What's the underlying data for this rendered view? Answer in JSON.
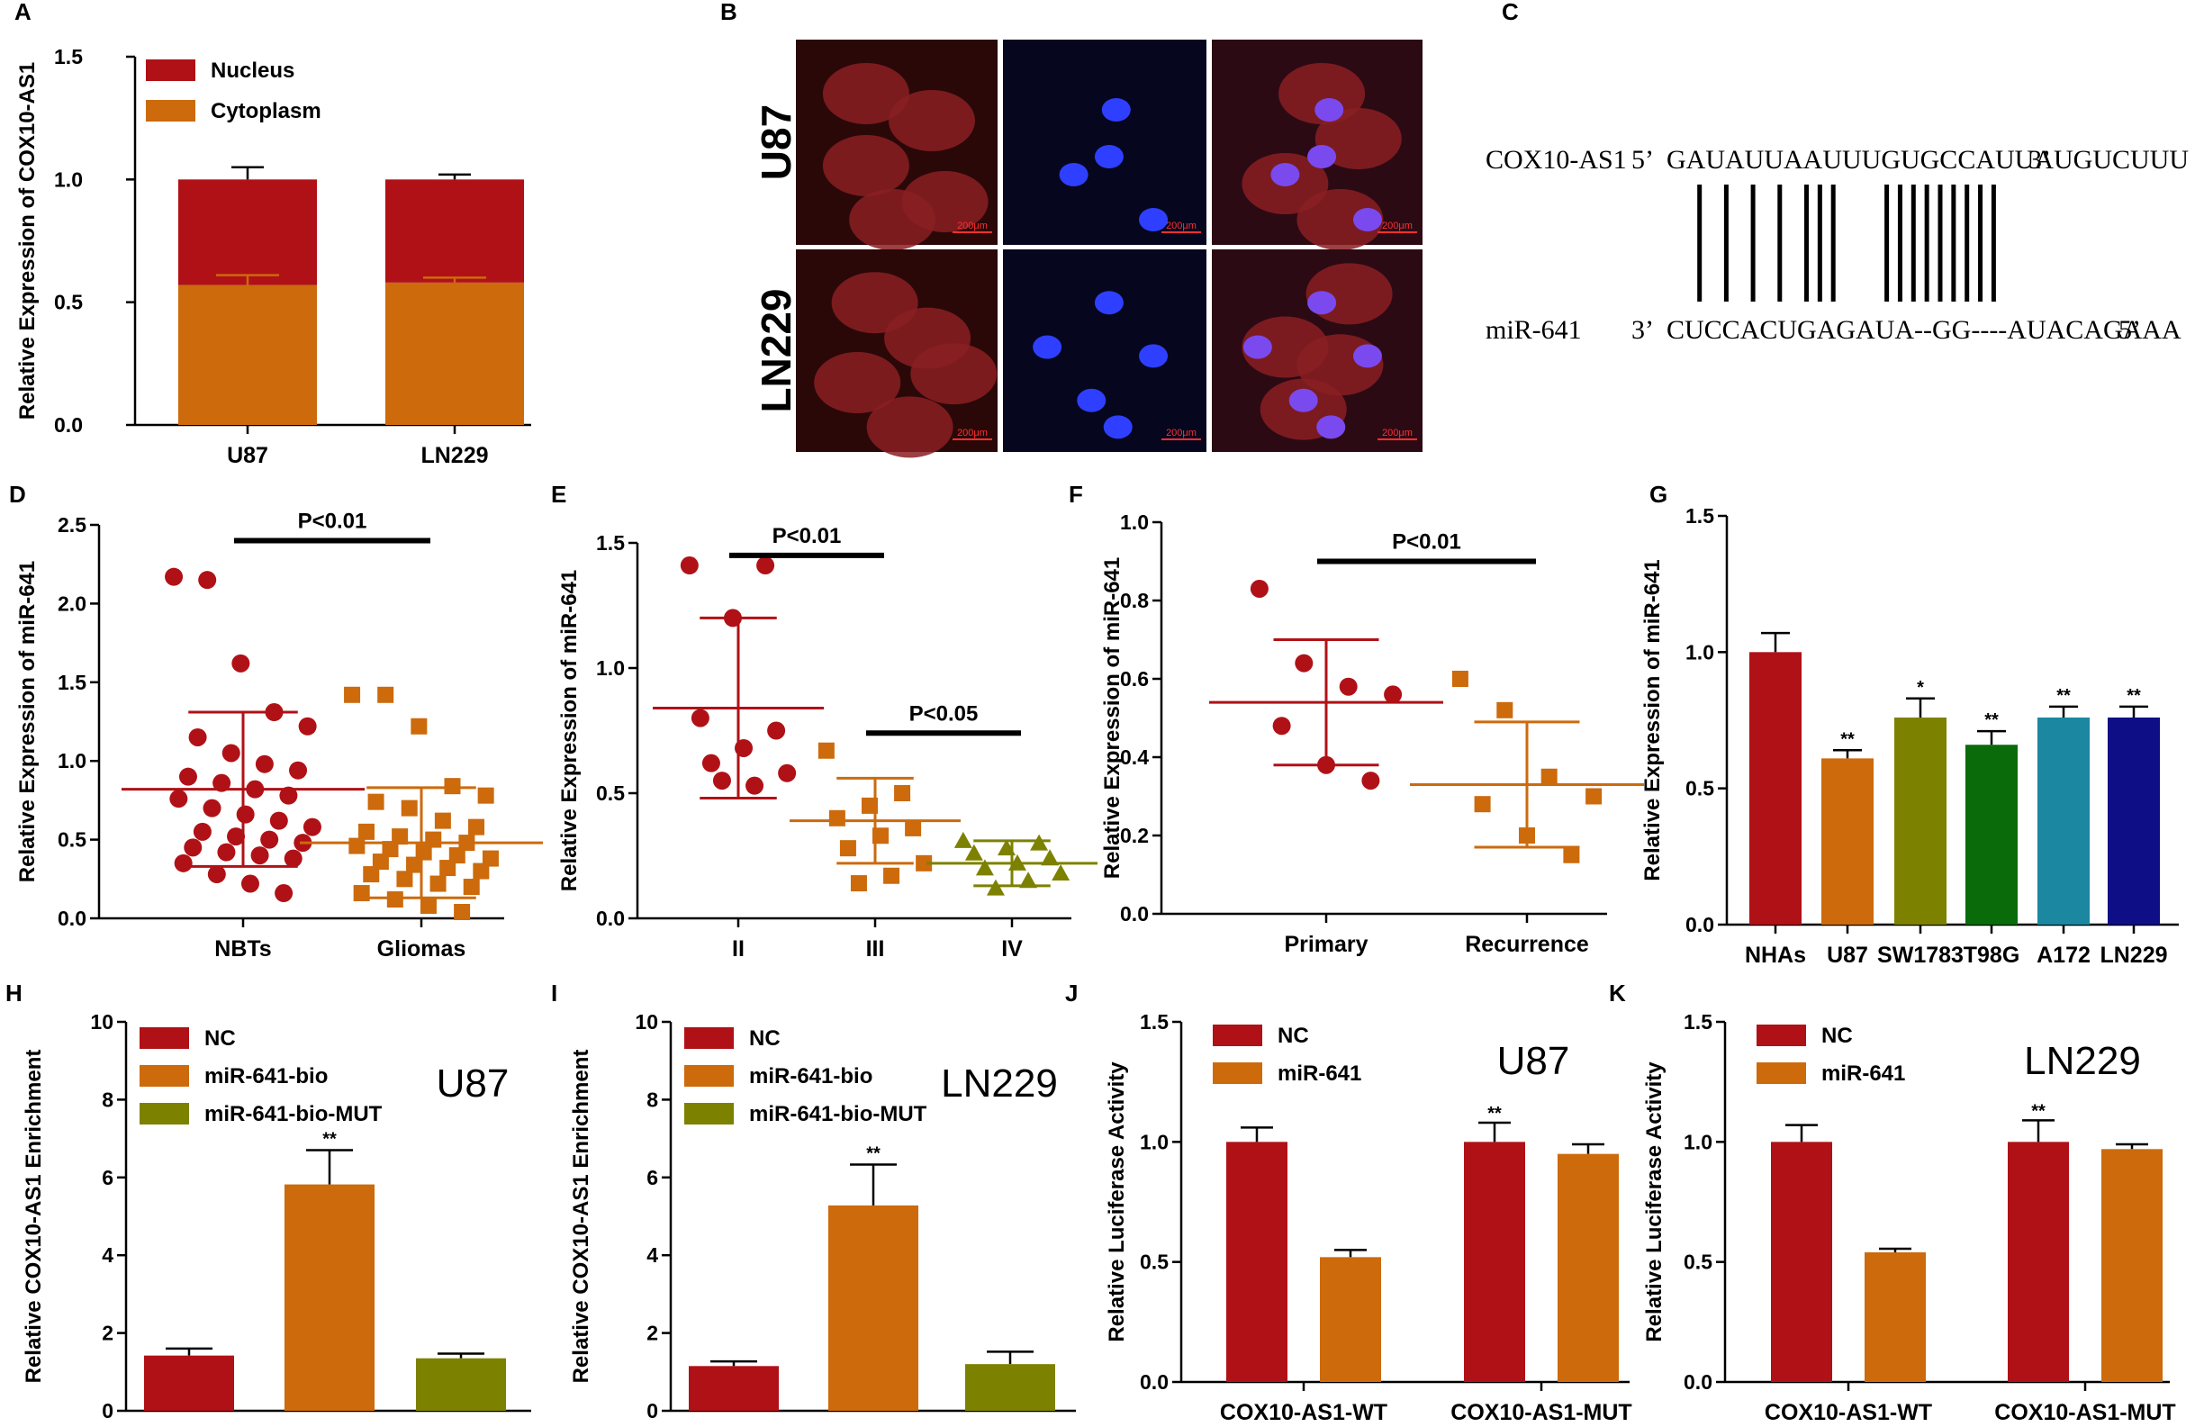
{
  "colors": {
    "red": "#b01116",
    "orange": "#cc6a0c",
    "olive": "#7d8100",
    "green": "#0a6b0a",
    "teal": "#1c87a0",
    "navy": "#0e0e86",
    "black": "#000000"
  },
  "panels": [
    {
      "id": "A",
      "type": "stacked_bar",
      "letter": "A",
      "ylabel": "Relative Expression of COX10-AS1",
      "ylim": [
        0,
        1.5
      ],
      "ticks": [
        "0.0",
        "0.5",
        "1.0",
        "1.5"
      ],
      "tick_values": [
        0,
        0.5,
        1,
        1.5
      ],
      "categories": [
        "U87",
        "LN229"
      ],
      "series": [
        {
          "name": "Nucleus",
          "color": "red",
          "values": [
            0.43,
            0.42
          ],
          "err": [
            0.05,
            0.02
          ]
        },
        {
          "name": "Cytoplasm",
          "color": "orange",
          "values": [
            0.57,
            0.58
          ],
          "err": [
            0.04,
            0.02
          ]
        }
      ]
    },
    {
      "id": "B",
      "type": "images",
      "letter": "B",
      "rows": [
        "U87",
        "LN229"
      ],
      "scale_bar": "200μm",
      "columns": [
        "red",
        "blue",
        "merge"
      ]
    },
    {
      "id": "C",
      "type": "sequence",
      "letter": "C",
      "top_label": "COX10-AS1",
      "top_5": "5’",
      "top_seq": "GAUAUUAAUUUGUGCCAUUAUGUCUUU",
      "top_3": "3’",
      "bottom_label": "miR-641",
      "bottom_3": "3’",
      "bottom_seq": "CUCCACUGAGAUA--GG----AUACAGAAA",
      "bottom_5": "5’",
      "pairs": [
        2,
        4,
        6,
        8,
        10,
        11,
        12,
        16,
        17,
        18,
        19,
        20,
        21,
        22,
        23,
        24
      ]
    },
    {
      "id": "D",
      "type": "scatter",
      "letter": "D",
      "ylabel": "Relative Expression of miR-641",
      "ylim": [
        0,
        2.5
      ],
      "ticks": [
        "0.0",
        "0.5",
        "1.0",
        "1.5",
        "2.0",
        "2.5"
      ],
      "tick_values": [
        0,
        0.5,
        1,
        1.5,
        2,
        2.5
      ],
      "categories": [
        "NBTs",
        "Gliomas"
      ],
      "sig": [
        {
          "from": 0,
          "to": 1,
          "y": 2.4,
          "label": "P<0.01"
        }
      ],
      "groups": [
        {
          "color": "red",
          "shape": "circle",
          "mean": 0.82,
          "sd": 0.49,
          "points": [
            2.17,
            2.15,
            1.62,
            1.31,
            1.22,
            1.15,
            1.05,
            0.98,
            0.94,
            0.9,
            0.86,
            0.82,
            0.78,
            0.76,
            0.7,
            0.66,
            0.62,
            0.58,
            0.55,
            0.52,
            0.5,
            0.48,
            0.45,
            0.42,
            0.4,
            0.38,
            0.35,
            0.28,
            0.22,
            0.16
          ]
        },
        {
          "color": "orange",
          "shape": "square",
          "mean": 0.48,
          "sd": 0.35,
          "points": [
            1.42,
            1.42,
            1.22,
            0.84,
            0.78,
            0.74,
            0.7,
            0.62,
            0.58,
            0.55,
            0.52,
            0.5,
            0.48,
            0.46,
            0.44,
            0.42,
            0.4,
            0.38,
            0.36,
            0.34,
            0.32,
            0.3,
            0.28,
            0.25,
            0.22,
            0.2,
            0.16,
            0.12,
            0.08,
            0.04
          ]
        }
      ]
    },
    {
      "id": "E",
      "type": "scatter",
      "letter": "E",
      "ylabel": "Relative Expression of miR-641",
      "ylim": [
        0,
        1.5
      ],
      "ticks": [
        "0.0",
        "0.5",
        "1.0",
        "1.5"
      ],
      "tick_values": [
        0,
        0.5,
        1,
        1.5
      ],
      "categories": [
        "II",
        "III",
        "IV"
      ],
      "sig": [
        {
          "from": 0,
          "to": 1,
          "y": 1.45,
          "label": "P<0.01"
        },
        {
          "from": 1,
          "to": 2,
          "y": 0.74,
          "label": "P<0.05"
        }
      ],
      "groups": [
        {
          "color": "red",
          "shape": "circle",
          "mean": 0.84,
          "sd": 0.36,
          "points": [
            1.41,
            1.41,
            1.2,
            0.8,
            0.75,
            0.68,
            0.62,
            0.58,
            0.53,
            0.55
          ]
        },
        {
          "color": "orange",
          "shape": "square",
          "mean": 0.39,
          "sd": 0.17,
          "points": [
            0.67,
            0.5,
            0.45,
            0.4,
            0.36,
            0.33,
            0.28,
            0.22,
            0.17,
            0.14
          ]
        },
        {
          "color": "olive",
          "shape": "triangle",
          "mean": 0.22,
          "sd": 0.09,
          "points": [
            0.31,
            0.3,
            0.28,
            0.26,
            0.24,
            0.22,
            0.2,
            0.18,
            0.15,
            0.12
          ]
        }
      ]
    },
    {
      "id": "F",
      "type": "scatter",
      "letter": "F",
      "ylabel": "Relative Expression of miR-641",
      "ylim": [
        0,
        1.0
      ],
      "ticks": [
        "0.0",
        "0.2",
        "0.4",
        "0.6",
        "0.8",
        "1.0"
      ],
      "tick_values": [
        0,
        0.2,
        0.4,
        0.6,
        0.8,
        1.0
      ],
      "categories": [
        "Primary",
        "Recurrence"
      ],
      "sig": [
        {
          "from": 0,
          "to": 1,
          "y": 0.9,
          "label": "P<0.01"
        }
      ],
      "groups": [
        {
          "color": "red",
          "shape": "circle",
          "mean": 0.54,
          "sd": 0.16,
          "points": [
            0.83,
            0.64,
            0.58,
            0.56,
            0.48,
            0.38,
            0.34
          ]
        },
        {
          "color": "orange",
          "shape": "square",
          "mean": 0.33,
          "sd": 0.16,
          "points": [
            0.6,
            0.52,
            0.35,
            0.3,
            0.28,
            0.2,
            0.15
          ]
        }
      ]
    },
    {
      "id": "G",
      "type": "bar",
      "letter": "G",
      "ylabel": "Relative Expression of miR-641",
      "ylim": [
        0,
        1.5
      ],
      "ticks": [
        "0.0",
        "0.5",
        "1.0",
        "1.5"
      ],
      "tick_values": [
        0,
        0.5,
        1,
        1.5
      ],
      "categories": [
        "NHAs",
        "U87",
        "SW1783",
        "T98G",
        "A172",
        "LN229"
      ],
      "values": [
        1.0,
        0.61,
        0.76,
        0.66,
        0.76,
        0.76
      ],
      "err": [
        0.07,
        0.03,
        0.07,
        0.05,
        0.04,
        0.04
      ],
      "colors": [
        "red",
        "orange",
        "olive",
        "green",
        "teal",
        "navy"
      ],
      "stars": [
        "",
        "**",
        "*",
        "**",
        "**",
        "**"
      ]
    },
    {
      "id": "H",
      "type": "bar",
      "letter": "H",
      "ylabel": "Relative COX10-AS1 Enrichment",
      "cell": "U87",
      "ylim": [
        0,
        10
      ],
      "ticks": [
        "0",
        "2",
        "4",
        "6",
        "8",
        "10"
      ],
      "tick_values": [
        0,
        2,
        4,
        6,
        8,
        10
      ],
      "categories": [
        "",
        "",
        ""
      ],
      "values": [
        1.42,
        5.82,
        1.35
      ],
      "err": [
        0.18,
        0.88,
        0.12
      ],
      "colors": [
        "red",
        "orange",
        "olive"
      ],
      "stars": [
        "",
        "**",
        ""
      ],
      "legend": [
        {
          "name": "NC",
          "color": "red"
        },
        {
          "name": "miR-641-bio",
          "color": "orange"
        },
        {
          "name": "miR-641-bio-MUT",
          "color": "olive"
        }
      ]
    },
    {
      "id": "I",
      "type": "bar",
      "letter": "I",
      "ylabel": "Relative COX10-AS1 Enrichment",
      "cell": "LN229",
      "ylim": [
        0,
        10
      ],
      "ticks": [
        "0",
        "2",
        "4",
        "6",
        "8",
        "10"
      ],
      "tick_values": [
        0,
        2,
        4,
        6,
        8,
        10
      ],
      "categories": [
        "",
        "",
        ""
      ],
      "values": [
        1.15,
        5.28,
        1.2
      ],
      "err": [
        0.12,
        1.05,
        0.32
      ],
      "colors": [
        "red",
        "orange",
        "olive"
      ],
      "stars": [
        "",
        "**",
        ""
      ],
      "legend": [
        {
          "name": "NC",
          "color": "red"
        },
        {
          "name": "miR-641-bio",
          "color": "orange"
        },
        {
          "name": "miR-641-bio-MUT",
          "color": "olive"
        }
      ]
    },
    {
      "id": "J",
      "type": "grouped_bar",
      "letter": "J",
      "ylabel": "Relative Luciferase Activity",
      "cell": "U87",
      "ylim": [
        0,
        1.5
      ],
      "ticks": [
        "0.0",
        "0.5",
        "1.0",
        "1.5"
      ],
      "tick_values": [
        0,
        0.5,
        1,
        1.5
      ],
      "categories": [
        "COX10-AS1-WT",
        "COX10-AS1-MUT"
      ],
      "series": [
        {
          "name": "NC",
          "color": "red",
          "values": [
            1.0,
            1.0
          ],
          "err": [
            0.06,
            0.08
          ]
        },
        {
          "name": "miR-641",
          "color": "orange",
          "values": [
            0.52,
            0.95
          ],
          "err": [
            0.03,
            0.04
          ]
        }
      ],
      "stars": [
        [
          "",
          ""
        ],
        [
          "**",
          ""
        ]
      ]
    },
    {
      "id": "K",
      "type": "grouped_bar",
      "letter": "K",
      "ylabel": "Relative Luciferase Activity",
      "cell": "LN229",
      "ylim": [
        0,
        1.5
      ],
      "ticks": [
        "0.0",
        "0.5",
        "1.0",
        "1.5"
      ],
      "tick_values": [
        0,
        0.5,
        1,
        1.5
      ],
      "categories": [
        "COX10-AS1-WT",
        "COX10-AS1-MUT"
      ],
      "series": [
        {
          "name": "NC",
          "color": "red",
          "values": [
            1.0,
            1.0
          ],
          "err": [
            0.07,
            0.09
          ]
        },
        {
          "name": "miR-641",
          "color": "orange",
          "values": [
            0.54,
            0.97
          ],
          "err": [
            0.015,
            0.02
          ]
        }
      ],
      "stars": [
        [
          "",
          ""
        ],
        [
          "**",
          ""
        ]
      ]
    }
  ]
}
